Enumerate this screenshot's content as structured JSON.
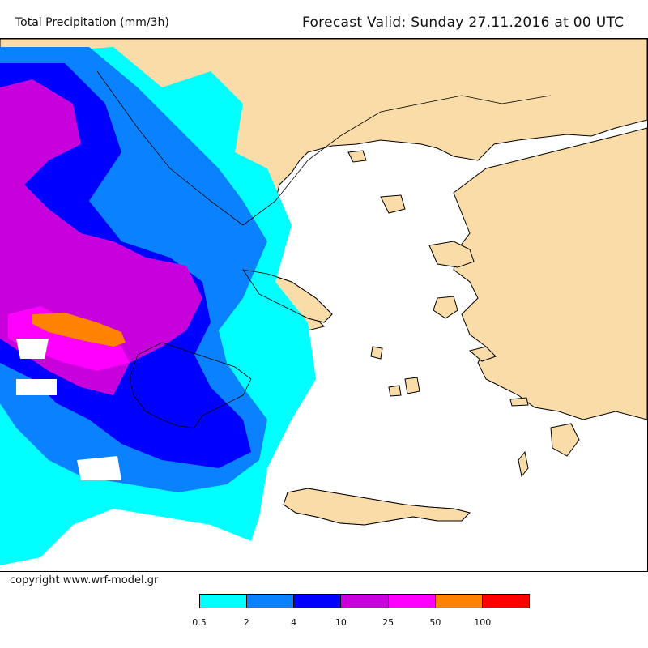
{
  "header": {
    "left_title": "Total Precipitation (mm/3h)",
    "right_title": "Forecast Valid:  Sunday 27.11.2016 at 00 UTC"
  },
  "footer": {
    "copyright": "copyright www.wrf-model.gr"
  },
  "legend": {
    "colors": [
      "#00ffff",
      "#0a82ff",
      "#0000ff",
      "#c800dc",
      "#ff00ff",
      "#ff8200",
      "#ff0000"
    ],
    "ticks": [
      "0.5",
      "2",
      "4",
      "10",
      "25",
      "50",
      "100"
    ]
  },
  "map_colors": {
    "land": "#fadca8",
    "sea": "#ffffff",
    "outline": "#000000"
  }
}
